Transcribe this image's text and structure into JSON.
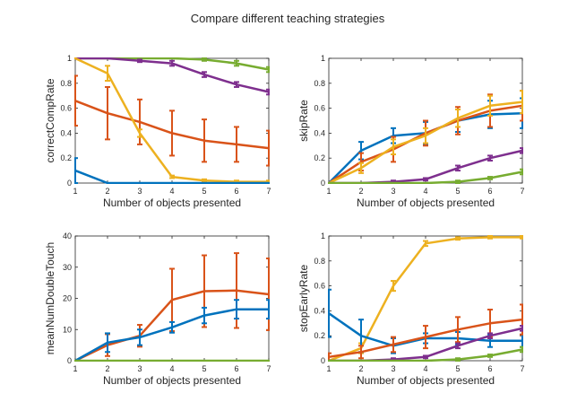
{
  "figure": {
    "title": "Compare different teaching strategies"
  },
  "colors": {
    "blue": "#0072BD",
    "orange": "#D95319",
    "yellow": "#EDB120",
    "purple": "#7E2F8E",
    "green": "#77AC30",
    "axis": "#262626"
  },
  "chart_data": [
    {
      "type": "line",
      "xlabel": "Number of objects presented",
      "ylabel": "correctCompRate",
      "xlim": [
        1,
        7
      ],
      "ylim": [
        0,
        1
      ],
      "xticks": [
        "1",
        "2",
        "3",
        "4",
        "5",
        "6",
        "7"
      ],
      "yticks": [
        "0",
        "0.2",
        "0.4",
        "0.6",
        "0.8",
        "1"
      ],
      "x": [
        1,
        2,
        3,
        4,
        5,
        6,
        7
      ],
      "series": [
        {
          "color": "#77AC30",
          "values": [
            1.0,
            1.0,
            1.0,
            1.0,
            0.99,
            0.96,
            0.91
          ],
          "err": [
            0,
            0,
            0,
            0,
            0.01,
            0.02,
            0.02
          ]
        },
        {
          "color": "#7E2F8E",
          "values": [
            1.0,
            1.0,
            0.98,
            0.96,
            0.87,
            0.79,
            0.73
          ],
          "err": [
            0,
            0,
            0.01,
            0.02,
            0.02,
            0.02,
            0.02
          ]
        },
        {
          "color": "#D95319",
          "values": [
            0.66,
            0.56,
            0.49,
            0.4,
            0.34,
            0.31,
            0.28
          ],
          "err": [
            0.2,
            0.21,
            0.18,
            0.18,
            0.17,
            0.14,
            0.14
          ]
        },
        {
          "color": "#EDB120",
          "values": [
            1.0,
            0.88,
            0.4,
            0.05,
            0.02,
            0.01,
            0.01
          ],
          "err": [
            0,
            0.06,
            0.03,
            0.01,
            0.01,
            0.01,
            0.01
          ]
        },
        {
          "color": "#0072BD",
          "values": [
            0.1,
            0.0,
            0.0,
            0.0,
            0.0,
            0.0,
            0.0
          ],
          "err": [
            0.1,
            0,
            0,
            0,
            0,
            0,
            0
          ]
        }
      ]
    },
    {
      "type": "line",
      "xlabel": "Number of objects presented",
      "ylabel": "skipRate",
      "xlim": [
        1,
        7
      ],
      "ylim": [
        0,
        1
      ],
      "xticks": [
        "1",
        "2",
        "3",
        "4",
        "5",
        "6",
        "7"
      ],
      "yticks": [
        "0",
        "0.2",
        "0.4",
        "0.6",
        "0.8",
        "1"
      ],
      "x": [
        1,
        2,
        3,
        4,
        5,
        6,
        7
      ],
      "series": [
        {
          "color": "#0072BD",
          "values": [
            0.0,
            0.26,
            0.38,
            0.4,
            0.5,
            0.55,
            0.56
          ],
          "err": [
            0,
            0.07,
            0.06,
            0.09,
            0.09,
            0.11,
            0.12
          ]
        },
        {
          "color": "#D95319",
          "values": [
            0.0,
            0.17,
            0.27,
            0.4,
            0.5,
            0.58,
            0.62
          ],
          "err": [
            0,
            0.07,
            0.1,
            0.1,
            0.11,
            0.13,
            0.12
          ]
        },
        {
          "color": "#EDB120",
          "values": [
            0.0,
            0.12,
            0.29,
            0.38,
            0.52,
            0.62,
            0.65
          ],
          "err": [
            0,
            0.04,
            0.06,
            0.06,
            0.07,
            0.08,
            0.09
          ]
        },
        {
          "color": "#7E2F8E",
          "values": [
            0.0,
            0.0,
            0.01,
            0.03,
            0.12,
            0.2,
            0.26
          ],
          "err": [
            0,
            0,
            0.01,
            0.01,
            0.02,
            0.02,
            0.02
          ]
        },
        {
          "color": "#77AC30",
          "values": [
            0.0,
            0.0,
            0.0,
            0.0,
            0.01,
            0.04,
            0.09
          ],
          "err": [
            0,
            0,
            0,
            0,
            0.01,
            0.01,
            0.02
          ]
        }
      ]
    },
    {
      "type": "line",
      "xlabel": "Number of objects presented",
      "ylabel": "meanNumDoubleTouch",
      "xlim": [
        1,
        7
      ],
      "ylim": [
        0,
        40
      ],
      "xticks": [
        "1",
        "2",
        "3",
        "4",
        "5",
        "6",
        "7"
      ],
      "yticks": [
        "0",
        "10",
        "20",
        "30",
        "40"
      ],
      "x": [
        1,
        2,
        3,
        4,
        5,
        6,
        7
      ],
      "series": [
        {
          "color": "#D95319",
          "values": [
            0.0,
            5.0,
            8.0,
            19.5,
            22.3,
            22.5,
            21.3
          ],
          "err": [
            0,
            3.5,
            3.5,
            10.0,
            11.5,
            12.0,
            11.5
          ]
        },
        {
          "color": "#0072BD",
          "values": [
            0.0,
            5.8,
            7.5,
            10.7,
            14.5,
            16.5,
            16.5
          ],
          "err": [
            0,
            3.0,
            2.5,
            1.7,
            2.5,
            3.0,
            3.0
          ]
        },
        {
          "color": "#77AC30",
          "values": [
            0.0,
            0.0,
            0.0,
            0.0,
            0.0,
            0.0,
            0.0
          ],
          "err": [
            0,
            0,
            0,
            0,
            0,
            0,
            0
          ]
        }
      ]
    },
    {
      "type": "line",
      "xlabel": "Number of objects presented",
      "ylabel": "stopEarlyRate",
      "xlim": [
        1,
        7
      ],
      "ylim": [
        0,
        1
      ],
      "xticks": [
        "1",
        "2",
        "3",
        "4",
        "5",
        "6",
        "7"
      ],
      "yticks": [
        "0",
        "0.2",
        "0.4",
        "0.6",
        "0.8",
        "1"
      ],
      "x": [
        1,
        2,
        3,
        4,
        5,
        6,
        7
      ],
      "series": [
        {
          "color": "#EDB120",
          "values": [
            0.0,
            0.1,
            0.6,
            0.94,
            0.98,
            0.99,
            0.99
          ],
          "err": [
            0,
            0.04,
            0.04,
            0.02,
            0.01,
            0.01,
            0.01
          ]
        },
        {
          "color": "#0072BD",
          "values": [
            0.38,
            0.2,
            0.12,
            0.18,
            0.18,
            0.16,
            0.16
          ],
          "err": [
            0.19,
            0.13,
            0.06,
            0.04,
            0.05,
            0.05,
            0.05
          ]
        },
        {
          "color": "#D95319",
          "values": [
            0.03,
            0.07,
            0.13,
            0.19,
            0.25,
            0.3,
            0.33
          ],
          "err": [
            0.03,
            0.05,
            0.06,
            0.09,
            0.1,
            0.11,
            0.12
          ]
        },
        {
          "color": "#7E2F8E",
          "values": [
            0.0,
            0.0,
            0.01,
            0.03,
            0.12,
            0.2,
            0.26
          ],
          "err": [
            0,
            0,
            0.01,
            0.01,
            0.02,
            0.02,
            0.02
          ]
        },
        {
          "color": "#77AC30",
          "values": [
            0.0,
            0.0,
            0.0,
            0.0,
            0.01,
            0.04,
            0.09
          ],
          "err": [
            0,
            0,
            0,
            0,
            0.01,
            0.01,
            0.02
          ]
        }
      ]
    }
  ]
}
